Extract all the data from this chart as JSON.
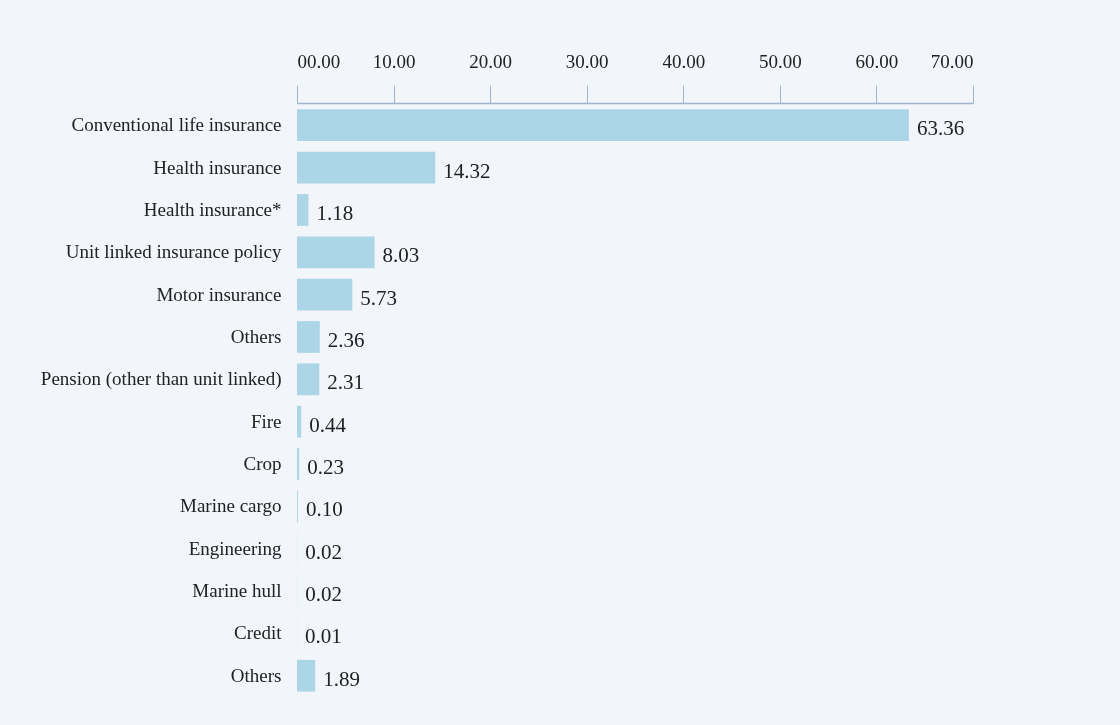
{
  "chart_data": {
    "type": "bar",
    "orientation": "horizontal",
    "categories": [
      "Conventional life insurance",
      "Health insurance",
      "Health insurance*",
      "Unit linked insurance policy",
      "Motor insurance",
      "Others",
      "Pension (other than unit linked)",
      "Fire",
      "Crop",
      "Marine cargo",
      "Engineering",
      "Marine hull",
      "Credit",
      "Others"
    ],
    "values": [
      63.36,
      14.32,
      1.18,
      8.03,
      5.73,
      2.36,
      2.31,
      0.44,
      0.23,
      0.1,
      0.02,
      0.02,
      0.01,
      1.89
    ],
    "value_labels": [
      "63.36",
      "14.32",
      "1.18",
      "8.03",
      "5.73",
      "2.36",
      "2.31",
      "0.44",
      "0.23",
      "0.10",
      "0.02",
      "0.02",
      "0.01",
      "1.89"
    ],
    "color": "#acd5e8",
    "xlim": [
      0,
      70
    ],
    "xticks": [
      {
        "value": 0,
        "label": "00.00"
      },
      {
        "value": 10,
        "label": "10.00"
      },
      {
        "value": 20,
        "label": "20.00"
      },
      {
        "value": 30,
        "label": "30.00"
      },
      {
        "value": 40,
        "label": "40.00"
      },
      {
        "value": 50,
        "label": "50.00"
      },
      {
        "value": 60,
        "label": "60.00"
      },
      {
        "value": 70,
        "label": "70.00"
      }
    ],
    "grid": false
  }
}
